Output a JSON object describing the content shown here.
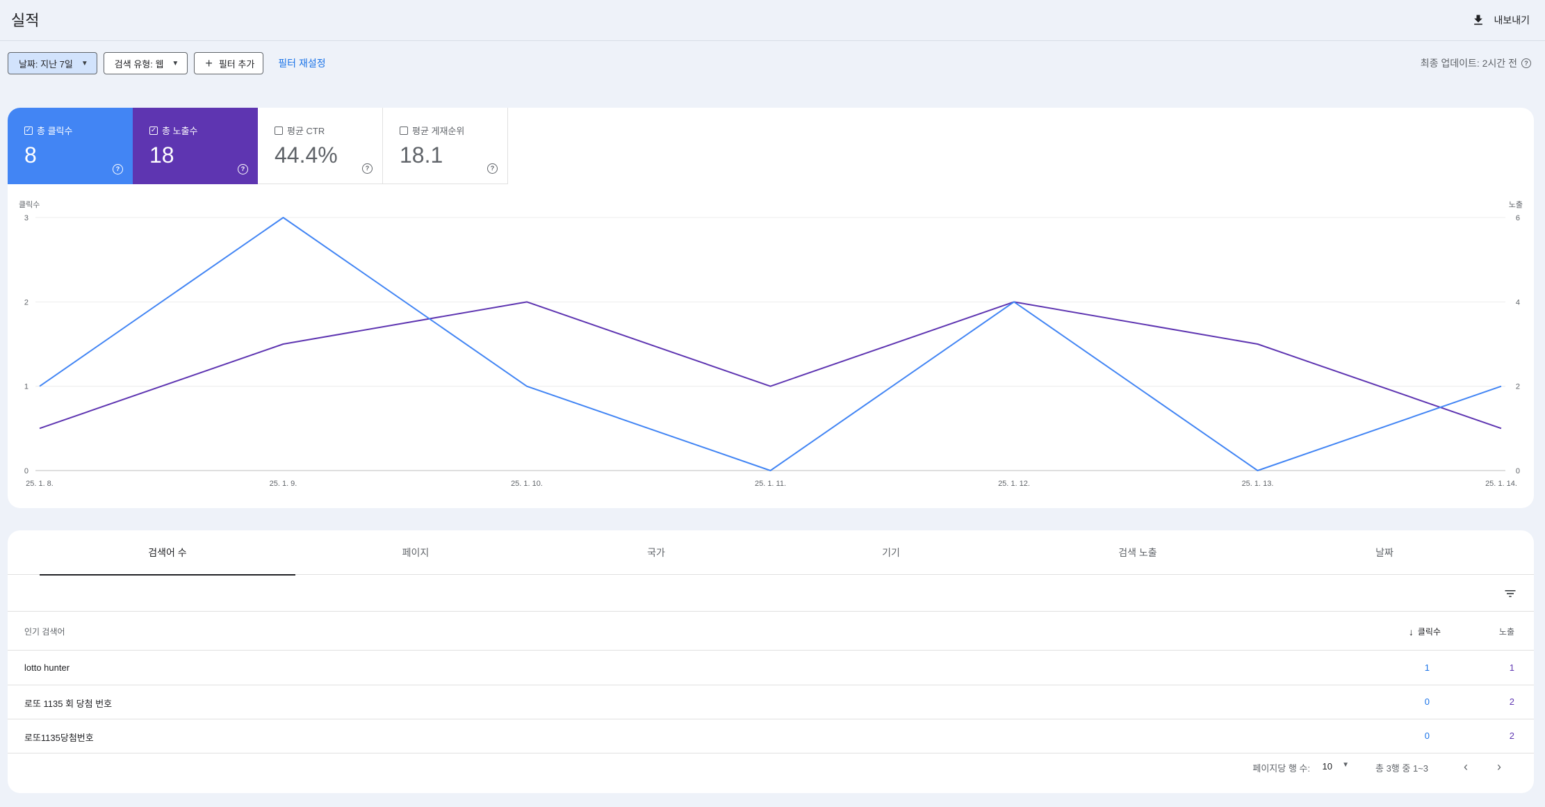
{
  "header": {
    "title": "실적",
    "export_label": "내보내기"
  },
  "filters": {
    "date_chip": "날짜: 지난 7일",
    "search_type_chip": "검색 유형: 웹",
    "add_filter": "필터 추가",
    "reset": "필터 재설정",
    "last_update": "최종 업데이트: 2시간 전"
  },
  "metrics": [
    {
      "label": "총 클릭수",
      "value": "8",
      "checked": true
    },
    {
      "label": "총 노출수",
      "value": "18",
      "checked": true
    },
    {
      "label": "평균 CTR",
      "value": "44.4%",
      "checked": false
    },
    {
      "label": "평균 게재순위",
      "value": "18.1",
      "checked": false
    }
  ],
  "chart_data": {
    "type": "line",
    "x": [
      "25. 1. 8.",
      "25. 1. 9.",
      "25. 1. 10.",
      "25. 1. 11.",
      "25. 1. 12.",
      "25. 1. 13.",
      "25. 1. 14."
    ],
    "series": [
      {
        "name": "클릭수",
        "axis": "left",
        "color": "#4285f4",
        "values": [
          1,
          3,
          1,
          0,
          2,
          0,
          1
        ]
      },
      {
        "name": "노출",
        "axis": "right",
        "color": "#5e35b1",
        "values": [
          1,
          3,
          4,
          2,
          4,
          3,
          1
        ]
      }
    ],
    "ylabel_left": "클릭수",
    "ylabel_right": "노출",
    "ylim_left": [
      0,
      3
    ],
    "ylim_right": [
      0,
      6
    ],
    "yticks_left": [
      0,
      1,
      2,
      3
    ],
    "yticks_right": [
      0,
      2,
      4,
      6
    ],
    "grid": true
  },
  "tabs": [
    "검색어 수",
    "페이지",
    "국가",
    "기기",
    "검색 노출",
    "날짜"
  ],
  "table": {
    "col_query": "인기 검색어",
    "col_clicks": "클릭수",
    "col_impressions": "노출",
    "rows": [
      {
        "query": "lotto hunter",
        "clicks": "1",
        "impressions": "1"
      },
      {
        "query": "로또 1135 회 당첨 번호",
        "clicks": "0",
        "impressions": "2"
      },
      {
        "query": "로또1135당첨번호",
        "clicks": "0",
        "impressions": "2"
      }
    ]
  },
  "pagination": {
    "rows_per_page_label": "페이지당 행 수:",
    "rows_per_page": "10",
    "range": "총 3행 중 1~3"
  },
  "colors": {
    "clicks": "#4285f4",
    "impressions": "#5e35b1",
    "link": "#1a73e8"
  }
}
